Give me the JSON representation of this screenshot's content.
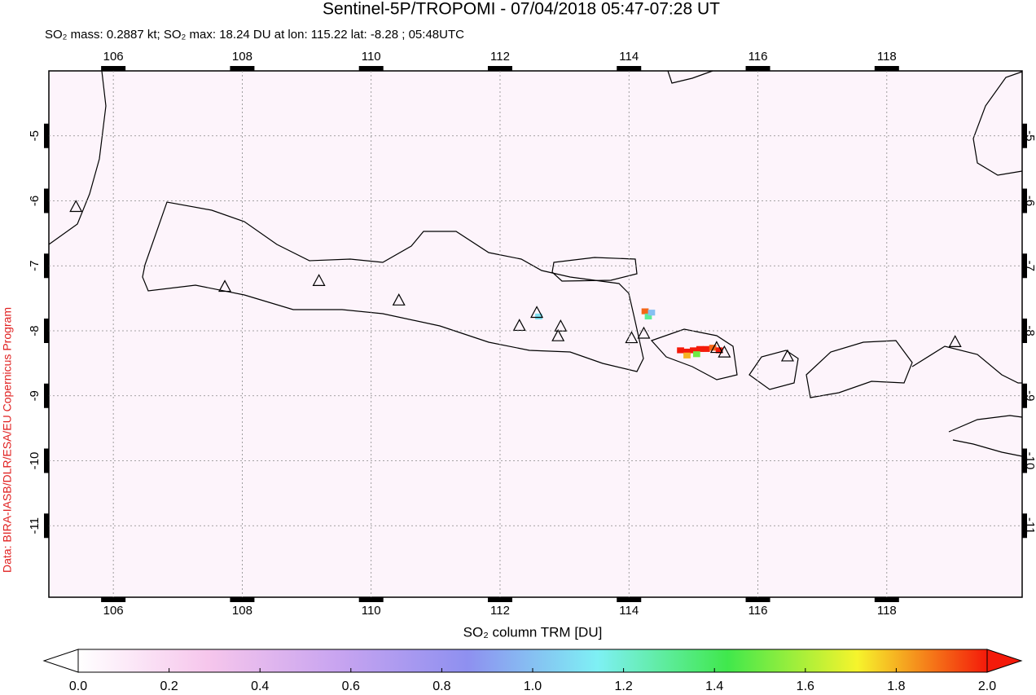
{
  "chart_data": {
    "type": "map",
    "title": "Sentinel-5P/TROPOMI - 07/04/2018 05:47-07:28 UT",
    "subtitle": "SO₂ mass: 0.2887 kt; SO₂ max: 18.24 DU at lon: 115.22 lat: -8.28 ; 05:48UTC",
    "credit": "Data: BIRA-IASB/DLR/ESA/EU Copernicus Program",
    "colorbar_label": "SO₂ column TRM [DU]",
    "xlim": [
      105,
      120.1
    ],
    "ylim": [
      -12.1,
      -4
    ],
    "xticks": [
      106,
      108,
      110,
      112,
      114,
      116,
      118
    ],
    "yticks": [
      -5,
      -6,
      -7,
      -8,
      -9,
      -10,
      -11
    ],
    "grid": true,
    "clim": [
      0,
      2
    ],
    "colormap": [
      "#ffffff",
      "#f6c6ec",
      "#c8a4f0",
      "#8e90f0",
      "#7ef0f4",
      "#40e84c",
      "#f6f42c",
      "#f41a0a"
    ],
    "cticks": [
      {
        "value": 0,
        "label": "0.0"
      },
      0.2,
      0.4,
      0.6,
      0.8,
      {
        "value": 1,
        "label": "1.0"
      },
      1.2,
      1.4,
      1.6,
      1.8,
      {
        "value": 2,
        "label": "2.0"
      }
    ],
    "volcanoes": {
      "lon": [
        105.42,
        107.73,
        109.19,
        110.43,
        112.3,
        112.57,
        112.94,
        112.9,
        114.04,
        114.23,
        115.36,
        115.48,
        116.46,
        119.06
      ],
      "lat": [
        -6.1,
        -7.33,
        -7.24,
        -7.54,
        -7.93,
        -7.73,
        -7.94,
        -8.09,
        -8.12,
        -8.05,
        -8.27,
        -8.34,
        -8.4,
        -8.18
      ]
    },
    "so2_pixels": {
      "lon": [
        114.8,
        114.9,
        115.0,
        115.1,
        115.2,
        115.3,
        115.4,
        114.9,
        115.05,
        114.25,
        114.3,
        114.35,
        112.6
      ],
      "lat": [
        -8.3,
        -8.32,
        -8.3,
        -8.28,
        -8.28,
        -8.26,
        -8.3,
        -8.38,
        -8.36,
        -7.7,
        -7.78,
        -7.72,
        -7.78
      ],
      "values": [
        2,
        2,
        2,
        2,
        2,
        1.9,
        2,
        1.8,
        1.5,
        1.9,
        1.3,
        1,
        1.1
      ]
    }
  }
}
